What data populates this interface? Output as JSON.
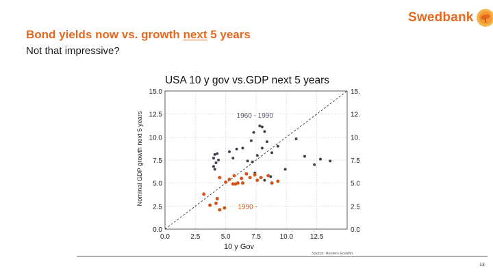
{
  "slide": {
    "title_prefix": "Bond yields now vs. growth ",
    "title_emph": "next",
    "title_suffix": " 5 years",
    "subtitle": "Not that impressive?",
    "page_number": "13"
  },
  "logo": {
    "text": "Swedbank",
    "color": "#e8691e"
  },
  "chart_data": {
    "type": "scatter",
    "title": "USA 10 y gov vs.GDP next 5 years",
    "xlabel": "10 y Gov",
    "ylabel": "Nominal GDP growth next 5 years",
    "xlim": [
      0,
      15
    ],
    "ylim": [
      0,
      15
    ],
    "xticks": [
      "0.0",
      "2.5",
      "5.0",
      "7.5",
      "10.0",
      "12.5"
    ],
    "yticks": [
      "0.0",
      "2.5",
      "5.0",
      "7.5",
      "10.0",
      "12.5",
      "15.0"
    ],
    "grid": true,
    "reference_line": "y = x",
    "source": "Source: Reuters EcoWin",
    "annotations": [
      {
        "text": "1960 - 1990",
        "x": 7.4,
        "y": 12.1,
        "color": "#555566"
      },
      {
        "text": "1990 -",
        "x": 6.8,
        "y": 2.2,
        "color": "#d2561b"
      }
    ],
    "series": [
      {
        "name": "1960 - 1990",
        "color": "#404050",
        "points": [
          [
            4.0,
            7.7
          ],
          [
            4.1,
            8.1
          ],
          [
            4.3,
            8.2
          ],
          [
            4.4,
            7.5
          ],
          [
            4.2,
            7.2
          ],
          [
            4.0,
            6.8
          ],
          [
            4.1,
            6.5
          ],
          [
            5.3,
            8.4
          ],
          [
            5.6,
            7.7
          ],
          [
            5.9,
            8.7
          ],
          [
            6.4,
            8.8
          ],
          [
            6.8,
            7.4
          ],
          [
            7.1,
            9.6
          ],
          [
            7.3,
            10.5
          ],
          [
            7.8,
            11.2
          ],
          [
            8.0,
            11.1
          ],
          [
            8.2,
            10.6
          ],
          [
            8.4,
            9.5
          ],
          [
            8.0,
            8.8
          ],
          [
            7.6,
            8.0
          ],
          [
            7.2,
            7.3
          ],
          [
            8.8,
            8.3
          ],
          [
            9.3,
            9.0
          ],
          [
            9.9,
            6.5
          ],
          [
            10.8,
            9.8
          ],
          [
            11.5,
            7.9
          ],
          [
            12.3,
            7.0
          ],
          [
            12.8,
            7.6
          ],
          [
            13.6,
            7.4
          ],
          [
            7.4,
            6.1
          ],
          [
            8.7,
            5.7
          ],
          [
            8.2,
            5.3
          ]
        ]
      },
      {
        "name": "1990 -",
        "color": "#d2561b",
        "points": [
          [
            3.2,
            3.8
          ],
          [
            3.7,
            2.6
          ],
          [
            4.2,
            2.8
          ],
          [
            4.5,
            2.1
          ],
          [
            4.9,
            2.3
          ],
          [
            4.3,
            3.3
          ],
          [
            4.5,
            5.6
          ],
          [
            5.0,
            5.1
          ],
          [
            5.3,
            5.4
          ],
          [
            5.6,
            4.9
          ],
          [
            5.8,
            4.9
          ],
          [
            6.0,
            5.0
          ],
          [
            6.3,
            5.5
          ],
          [
            6.4,
            5.0
          ],
          [
            6.7,
            6.0
          ],
          [
            7.0,
            5.6
          ],
          [
            7.4,
            5.9
          ],
          [
            7.6,
            5.3
          ],
          [
            7.9,
            5.6
          ],
          [
            8.5,
            5.8
          ],
          [
            8.8,
            5.0
          ],
          [
            9.3,
            5.2
          ],
          [
            5.7,
            5.8
          ]
        ]
      }
    ]
  }
}
